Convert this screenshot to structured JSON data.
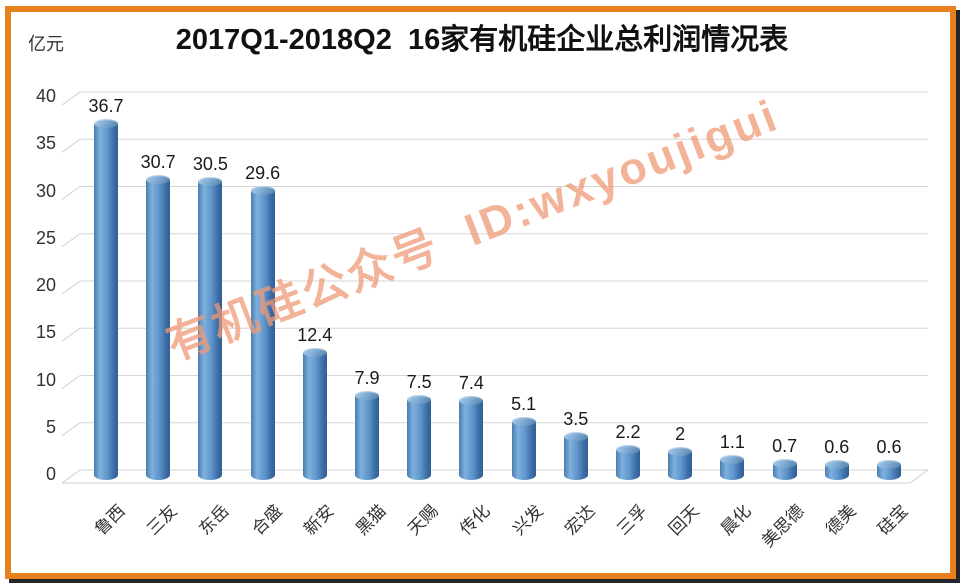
{
  "header": {
    "title": "2017Q1-2018Q2  16家有机硅企业总利润情况表",
    "unit_label": "亿元"
  },
  "watermark": {
    "text": "有机硅公众号  ID:wxyoujigui",
    "color": "#F09A76"
  },
  "frame": {
    "border_color": "#E9801E",
    "shadow_color": "#26262A"
  },
  "chart_data": {
    "type": "bar",
    "subtype": "3d-cylinder",
    "title": "2017Q1-2018Q2  16家有机硅企业总利润情况表",
    "ylabel": "亿元",
    "xlabel": "",
    "categories": [
      "鲁西",
      "三友",
      "东岳",
      "合盛",
      "新安",
      "黑猫",
      "天赐",
      "传化",
      "兴发",
      "宏达",
      "三孚",
      "回天",
      "晨化",
      "美思德",
      "德美",
      "硅宝"
    ],
    "values": [
      36.7,
      30.7,
      30.5,
      29.6,
      12.4,
      7.9,
      7.5,
      7.4,
      5.1,
      3.5,
      2.2,
      2,
      1.1,
      0.7,
      0.6,
      0.6
    ],
    "yticks": [
      0,
      5,
      10,
      15,
      20,
      25,
      30,
      35,
      40
    ],
    "ylim": [
      0,
      40
    ],
    "grid": true,
    "legend": "none",
    "data_labels": true,
    "bar_color": "#4F81BD",
    "gridline_color": "#D6D6D6"
  }
}
